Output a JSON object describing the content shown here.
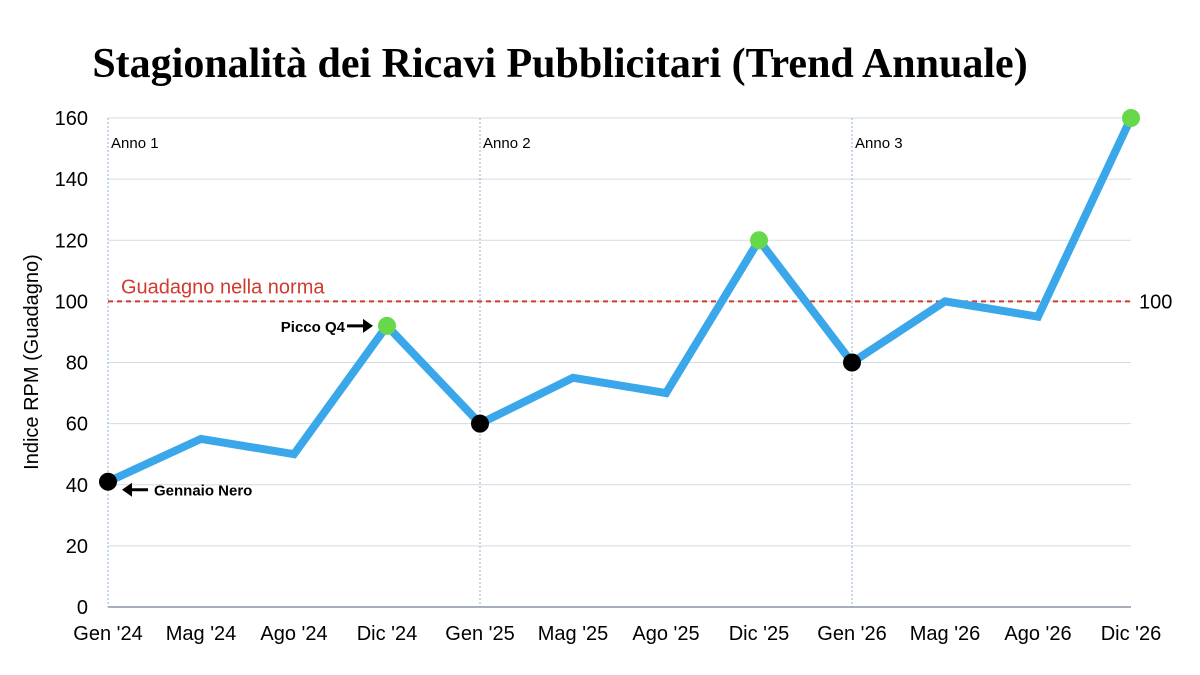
{
  "chart_data": {
    "type": "line",
    "title": "Stagionalità dei Ricavi Pubblicitari (Trend Annuale)",
    "xlabel": "",
    "ylabel": "Indice RPM (Guadagno)",
    "ylim": [
      0,
      160
    ],
    "yticks": [
      0,
      20,
      40,
      60,
      80,
      100,
      120,
      140,
      160
    ],
    "grid": "horizontal",
    "categories": [
      "Gen '24",
      "Mag '24",
      "Ago '24",
      "Dic '24",
      "Gen '25",
      "Mag '25",
      "Ago '25",
      "Dic '25",
      "Gen '26",
      "Mag '26",
      "Ago '26",
      "Dic '26"
    ],
    "series": [
      {
        "values": [
          41,
          55,
          50,
          92,
          60,
          75,
          70,
          120,
          80,
          100,
          95,
          160
        ],
        "color": "#3aa7ea"
      }
    ],
    "markers": [
      {
        "index": 0,
        "color": "#000000"
      },
      {
        "index": 3,
        "color": "#66d84a"
      },
      {
        "index": 4,
        "color": "#000000"
      },
      {
        "index": 7,
        "color": "#66d84a"
      },
      {
        "index": 8,
        "color": "#000000"
      },
      {
        "index": 11,
        "color": "#66d84a"
      }
    ],
    "reference_line": {
      "value": 100,
      "label": "Guadagno nella norma",
      "value_label": "100",
      "color": "#d13a2c"
    },
    "year_dividers": [
      {
        "index": 0,
        "label": "Anno 1"
      },
      {
        "index": 4,
        "label": "Anno 2"
      },
      {
        "index": 8,
        "label": "Anno 3"
      }
    ],
    "annotations": [
      {
        "index": 3,
        "text": "Picco Q4",
        "side": "left"
      },
      {
        "index": 0,
        "text": "Gennaio Nero",
        "side": "right"
      }
    ]
  }
}
